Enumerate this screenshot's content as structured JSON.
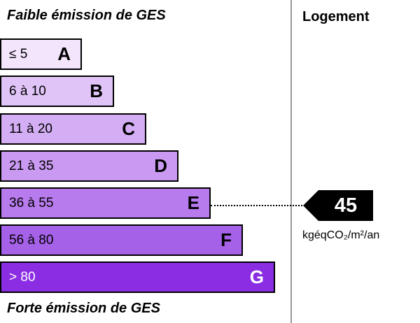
{
  "header": {
    "low_label": "Faible émission de GES",
    "column_title": "Logement"
  },
  "footer": {
    "high_label": "Forte émission de GES"
  },
  "bands": [
    {
      "range": "≤ 5",
      "letter": "A",
      "color": "#f2e5fc"
    },
    {
      "range": "6 à 10",
      "letter": "B",
      "color": "#e0c4f7"
    },
    {
      "range": "11 à 20",
      "letter": "C",
      "color": "#d4aef4"
    },
    {
      "range": "21 à 35",
      "letter": "D",
      "color": "#ca9af2"
    },
    {
      "range": "36 à 55",
      "letter": "E",
      "color": "#b77bed"
    },
    {
      "range": "56 à 80",
      "letter": "F",
      "color": "#a561e8"
    },
    {
      "range": "> 80",
      "letter": "G",
      "color": "#8b2ee3"
    }
  ],
  "indicator": {
    "value": "45",
    "unit": "kgéqCO₂/m²/an",
    "band": "E"
  }
}
